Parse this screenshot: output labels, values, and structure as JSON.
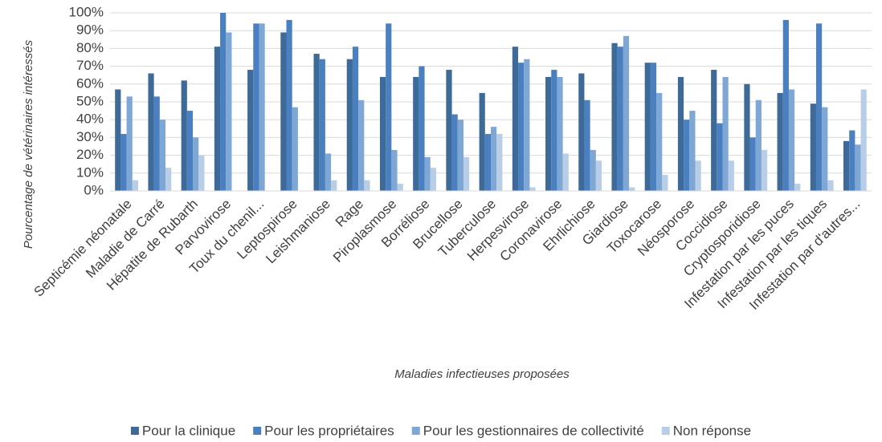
{
  "chart_data": {
    "type": "bar",
    "x_label": "Maladies infectieuses proposées",
    "y_label": "Pourcentage de vétérinaires intéressés",
    "categories": [
      "Septicémie néonatale",
      "Maladie de Carré",
      "Hépatite de Rubarth",
      "Parvovirose",
      "Toux du chenil...",
      "Leptospirose",
      "Leishmaniose",
      "Rage",
      "Piroplasmose",
      "Borréliose",
      "Brucellose",
      "Tuberculose",
      "Herpesvirose",
      "Coronavirose",
      "Ehrlichiose",
      "Giardiose",
      "Toxocarose",
      "Néosporose",
      "Coccidiose",
      "Cryptosporidiose",
      "Infestation par les puces",
      "Infestation par les tiques",
      "Infestation par d'autres..."
    ],
    "series": [
      {
        "name": "Pour la clinique",
        "color": "#3d6a98",
        "values": [
          57,
          66,
          62,
          81,
          68,
          89,
          77,
          74,
          64,
          64,
          68,
          55,
          81,
          64,
          66,
          83,
          72,
          64,
          68,
          60,
          55,
          49,
          28
        ]
      },
      {
        "name": "Pour les propriétaires",
        "color": "#4a80bf",
        "values": [
          32,
          53,
          45,
          100,
          94,
          96,
          74,
          81,
          94,
          70,
          43,
          32,
          72,
          68,
          51,
          81,
          72,
          40,
          38,
          30,
          96,
          94,
          34
        ]
      },
      {
        "name": "Pour les gestionnaires de collectivité",
        "color": "#7ea7d6",
        "values": [
          53,
          40,
          30,
          89,
          94,
          47,
          21,
          51,
          23,
          19,
          40,
          36,
          74,
          64,
          23,
          87,
          55,
          45,
          64,
          51,
          57,
          47,
          26
        ]
      },
      {
        "name": "Non réponse",
        "color": "#b8cde6",
        "values": [
          6,
          13,
          20,
          0,
          0,
          0,
          6,
          6,
          4,
          13,
          19,
          32,
          2,
          21,
          17,
          2,
          9,
          17,
          17,
          23,
          4,
          6,
          57
        ]
      }
    ],
    "ylim": [
      0,
      100
    ],
    "yticks": [
      {
        "value": 0,
        "label": "0%"
      },
      {
        "value": 10,
        "label": "10%"
      },
      {
        "value": 20,
        "label": "20%"
      },
      {
        "value": 30,
        "label": "30%"
      },
      {
        "value": 40,
        "label": "40%"
      },
      {
        "value": 50,
        "label": "50%"
      },
      {
        "value": 60,
        "label": "60%"
      },
      {
        "value": 70,
        "label": "70%"
      },
      {
        "value": 80,
        "label": "80%"
      },
      {
        "value": 90,
        "label": "90%"
      },
      {
        "value": 100,
        "label": "100%"
      }
    ],
    "grid": true,
    "legend": "bottom"
  }
}
